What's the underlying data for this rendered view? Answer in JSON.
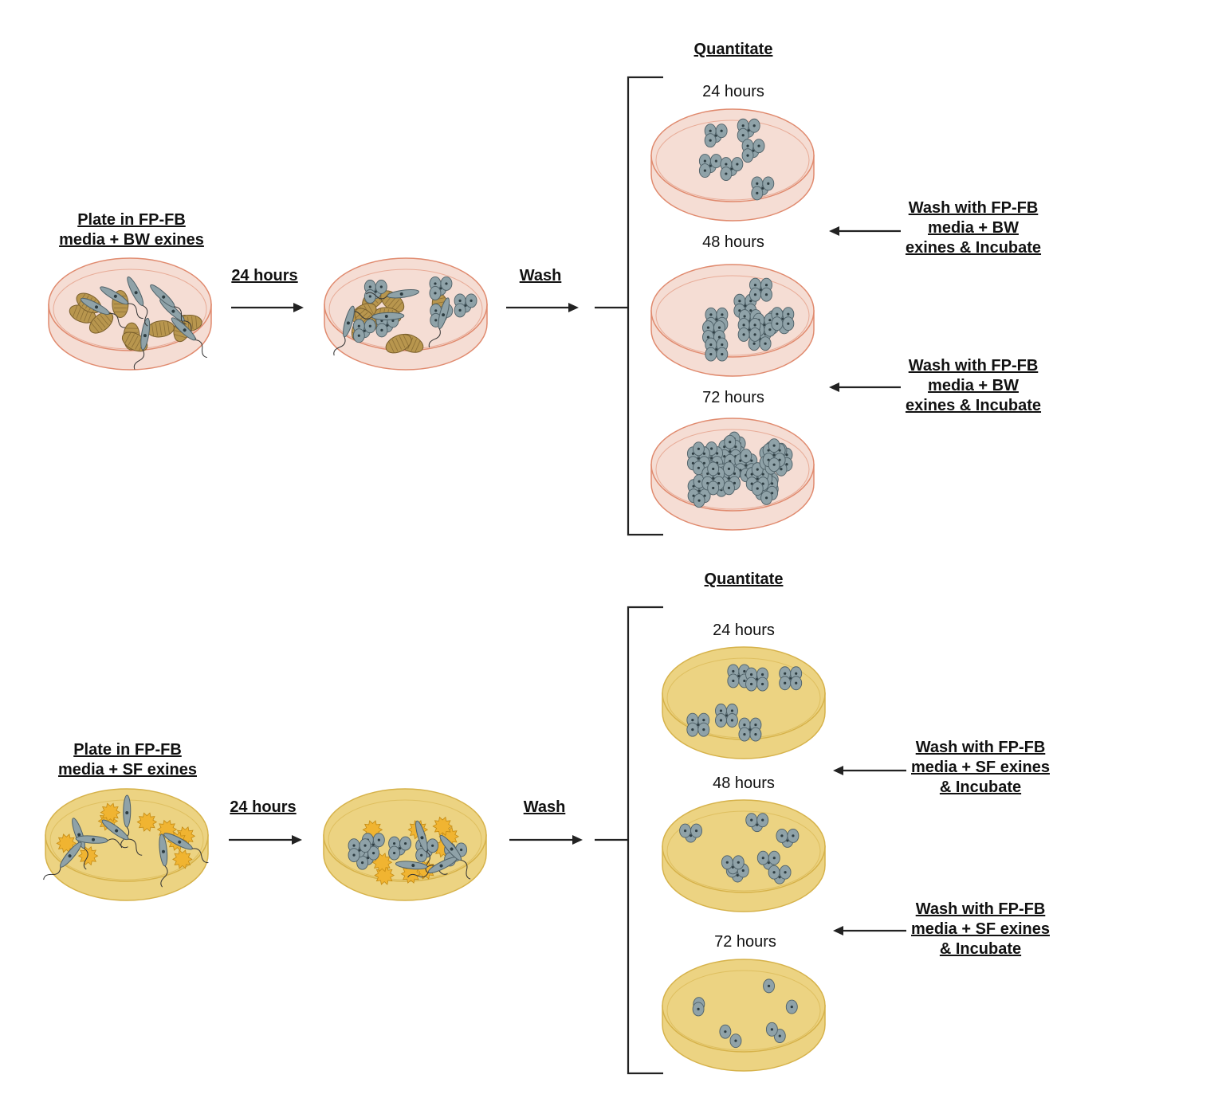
{
  "colors": {
    "bw_media": "#f5ddd4",
    "bw_rim": "#e08a6e",
    "sf_media": "#ecd382",
    "sf_rim": "#d6b24a",
    "bw_exine": "#b8964e",
    "sf_exine": "#f0b431",
    "cell": "#8fa2a8",
    "cell_stroke": "#4f6168",
    "arrow": "#222222"
  },
  "panels": [
    {
      "id": "bw",
      "theme": "bw",
      "start_label": "Plate in FP-FB\nmedia + BW exines",
      "step1_label": "24 hours",
      "step2_label": "Wash",
      "quantitate_label": "Quantitate",
      "timepoints": [
        "24 hours",
        "48 hours",
        "72 hours"
      ],
      "wash_labels": [
        "Wash with FP-FB\nmedia + BW\nexines & Incubate",
        "Wash with FP-FB\nmedia + BW\nexines & Incubate"
      ],
      "icons": [
        "petri-dish-icon",
        "promastigote-icon",
        "buckwheat-exine-icon",
        "amastigote-cluster-icon",
        "arrow-icon",
        "bracket-icon"
      ]
    },
    {
      "id": "sf",
      "theme": "sf",
      "start_label": "Plate in FP-FB\nmedia + SF exines",
      "step1_label": "24 hours",
      "step2_label": "Wash",
      "quantitate_label": "Quantitate",
      "timepoints": [
        "24 hours",
        "48 hours",
        "72 hours"
      ],
      "wash_labels": [
        "Wash with FP-FB\nmedia + SF exines\n& Incubate",
        "Wash with FP-FB\nmedia + SF exines\n& Incubate"
      ],
      "icons": [
        "petri-dish-icon",
        "promastigote-icon",
        "sunflower-exine-icon",
        "amastigote-cluster-icon",
        "arrow-icon",
        "bracket-icon"
      ]
    }
  ]
}
